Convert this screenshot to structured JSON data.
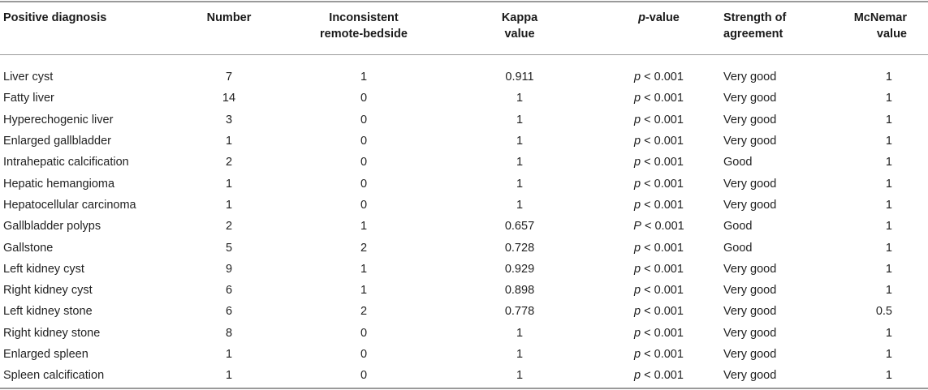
{
  "table": {
    "headers": {
      "positive_diagnosis": "Positive diagnosis",
      "number": "Number",
      "inconsistent_line1": "Inconsistent",
      "inconsistent_line2": "remote-bedside",
      "kappa_line1": "Kappa",
      "kappa_line2": "value",
      "pvalue_italic": "p",
      "pvalue_rest": "-value",
      "strength_line1": "Strength of",
      "strength_line2": "agreement",
      "mcnemar_line1": "McNemar",
      "mcnemar_line2": "value"
    },
    "rows": [
      {
        "diagnosis": "Liver cyst",
        "number": "7",
        "inconsistent": "1",
        "kappa": "0.911",
        "p_symbol": "p",
        "p_rest": " < 0.001",
        "strength": "Very good",
        "mcnemar": "1"
      },
      {
        "diagnosis": "Fatty liver",
        "number": "14",
        "inconsistent": "0",
        "kappa": "1",
        "p_symbol": "p",
        "p_rest": " < 0.001",
        "strength": "Very good",
        "mcnemar": "1"
      },
      {
        "diagnosis": "Hyperechogenic liver",
        "number": "3",
        "inconsistent": "0",
        "kappa": "1",
        "p_symbol": "p",
        "p_rest": " < 0.001",
        "strength": "Very good",
        "mcnemar": "1"
      },
      {
        "diagnosis": "Enlarged gallbladder",
        "number": "1",
        "inconsistent": "0",
        "kappa": "1",
        "p_symbol": "p",
        "p_rest": " < 0.001",
        "strength": "Very good",
        "mcnemar": "1"
      },
      {
        "diagnosis": "Intrahepatic calcification",
        "number": "2",
        "inconsistent": "0",
        "kappa": "1",
        "p_symbol": "p",
        "p_rest": " < 0.001",
        "strength": "Good",
        "mcnemar": "1"
      },
      {
        "diagnosis": "Hepatic hemangioma",
        "number": "1",
        "inconsistent": "0",
        "kappa": "1",
        "p_symbol": "p",
        "p_rest": " < 0.001",
        "strength": "Very good",
        "mcnemar": "1"
      },
      {
        "diagnosis": "Hepatocellular carcinoma",
        "number": "1",
        "inconsistent": "0",
        "kappa": "1",
        "p_symbol": "p",
        "p_rest": " < 0.001",
        "strength": "Very good",
        "mcnemar": "1"
      },
      {
        "diagnosis": "Gallbladder polyps",
        "number": "2",
        "inconsistent": "1",
        "kappa": "0.657",
        "p_symbol": "P",
        "p_rest": " < 0.001",
        "strength": "Good",
        "mcnemar": "1"
      },
      {
        "diagnosis": "Gallstone",
        "number": "5",
        "inconsistent": "2",
        "kappa": "0.728",
        "p_symbol": "p",
        "p_rest": " < 0.001",
        "strength": "Good",
        "mcnemar": "1"
      },
      {
        "diagnosis": "Left kidney cyst",
        "number": "9",
        "inconsistent": "1",
        "kappa": "0.929",
        "p_symbol": "p",
        "p_rest": " < 0.001",
        "strength": "Very good",
        "mcnemar": "1"
      },
      {
        "diagnosis": "Right kidney cyst",
        "number": "6",
        "inconsistent": "1",
        "kappa": "0.898",
        "p_symbol": "p",
        "p_rest": " < 0.001",
        "strength": "Very good",
        "mcnemar": "1"
      },
      {
        "diagnosis": "Left kidney stone",
        "number": "6",
        "inconsistent": "2",
        "kappa": "0.778",
        "p_symbol": "p",
        "p_rest": " < 0.001",
        "strength": "Very good",
        "mcnemar": "0.5"
      },
      {
        "diagnosis": "Right kidney stone",
        "number": "8",
        "inconsistent": "0",
        "kappa": "1",
        "p_symbol": "p",
        "p_rest": " < 0.001",
        "strength": "Very good",
        "mcnemar": "1"
      },
      {
        "diagnosis": "Enlarged spleen",
        "number": "1",
        "inconsistent": "0",
        "kappa": "1",
        "p_symbol": "p",
        "p_rest": " < 0.001",
        "strength": "Very good",
        "mcnemar": "1"
      },
      {
        "diagnosis": "Spleen calcification",
        "number": "1",
        "inconsistent": "0",
        "kappa": "1",
        "p_symbol": "p",
        "p_rest": " < 0.001",
        "strength": "Very good",
        "mcnemar": "1"
      }
    ]
  }
}
